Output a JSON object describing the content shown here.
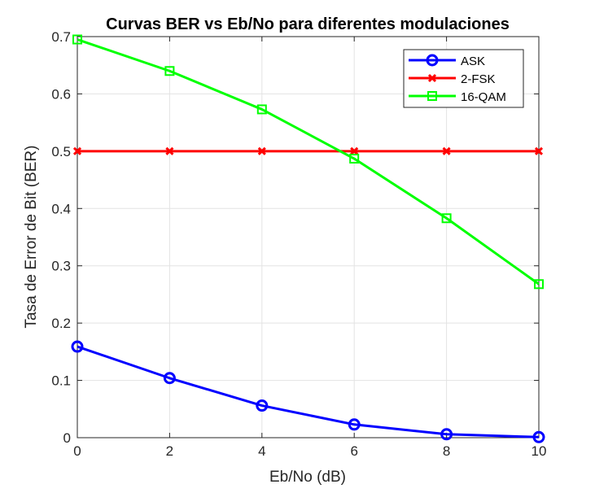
{
  "chart_data": {
    "type": "line",
    "title": "Curvas BER vs Eb/No para diferentes modulaciones",
    "xlabel": "Eb/No (dB)",
    "ylabel": "Tasa de Error de Bit (BER)",
    "xlim": [
      0,
      10
    ],
    "ylim": [
      0,
      0.7
    ],
    "xticks": [
      0,
      2,
      4,
      6,
      8,
      10
    ],
    "yticks": [
      0,
      0.1,
      0.2,
      0.3,
      0.4,
      0.5,
      0.6,
      0.7
    ],
    "xtick_labels": [
      "0",
      "2",
      "4",
      "6",
      "8",
      "10"
    ],
    "ytick_labels": [
      "0",
      "0.1",
      "0.2",
      "0.3",
      "0.4",
      "0.5",
      "0.6",
      "0.7"
    ],
    "grid": true,
    "legend_position": "top-right",
    "x": [
      0,
      2,
      4,
      6,
      8,
      10
    ],
    "series": [
      {
        "name": "ASK",
        "color": "#0000ff",
        "marker": "circle",
        "values": [
          0.159,
          0.104,
          0.056,
          0.023,
          0.006,
          0.001
        ]
      },
      {
        "name": "2-FSK",
        "color": "#ff0000",
        "marker": "x",
        "values": [
          0.5,
          0.5,
          0.5,
          0.5,
          0.5,
          0.5
        ]
      },
      {
        "name": "16-QAM",
        "color": "#00ff00",
        "marker": "square",
        "values": [
          0.695,
          0.64,
          0.573,
          0.487,
          0.383,
          0.268
        ]
      }
    ]
  }
}
